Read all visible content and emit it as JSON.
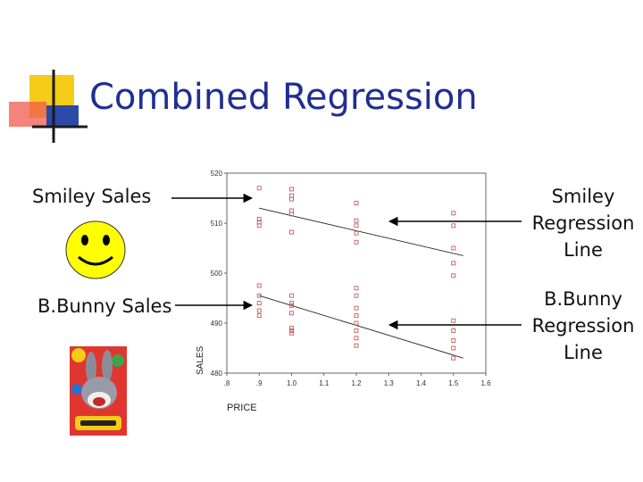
{
  "slide": {
    "title": "Combined Regression",
    "labels": {
      "smiley_sales": "Smiley Sales",
      "bunny_sales": "B.Bunny Sales",
      "smiley_line": [
        "Smiley",
        "Regression",
        "Line"
      ],
      "bunny_line": [
        "B.Bunny",
        "Regression",
        "Line"
      ]
    },
    "logo_colors": {
      "yellow": "#f5cc17",
      "red": "#f05a4f",
      "blue": "#2b4aa8",
      "dark": "#1a1a1a"
    },
    "title_color": "#1f2e93",
    "pictures": [
      "smiley-face",
      "bugs-bunny-box"
    ],
    "arrow_color": "#000000"
  },
  "chart_data": {
    "type": "scatter",
    "xlabel": "PRICE",
    "ylabel": "SALES",
    "xlim": [
      0.8,
      1.6
    ],
    "ylim": [
      480,
      520
    ],
    "xticks": [
      ".8",
      ".9",
      "1.0",
      "1.1",
      "1.2",
      "1.3",
      "1.4",
      "1.5",
      "1.6"
    ],
    "xtick_values": [
      0.8,
      0.9,
      1.0,
      1.1,
      1.2,
      1.3,
      1.4,
      1.5,
      1.6
    ],
    "yticks": [
      "480",
      "490",
      "500",
      "510",
      "520"
    ],
    "ytick_values": [
      480,
      490,
      500,
      510,
      520
    ],
    "marker_color": "#c85a5a",
    "series": [
      {
        "points": [
          [
            0.9,
            517
          ],
          [
            0.9,
            510.8
          ],
          [
            0.9,
            510.2
          ],
          [
            0.9,
            509.5
          ],
          [
            1.0,
            516.8
          ],
          [
            1.0,
            515.5
          ],
          [
            1.0,
            514.8
          ],
          [
            1.0,
            512.5
          ],
          [
            1.0,
            511.8
          ],
          [
            1.0,
            508.2
          ],
          [
            1.2,
            514
          ],
          [
            1.2,
            510.5
          ],
          [
            1.2,
            509.5
          ],
          [
            1.2,
            508
          ],
          [
            1.2,
            506.2
          ],
          [
            1.5,
            512
          ],
          [
            1.5,
            509.5
          ],
          [
            1.5,
            505
          ],
          [
            1.5,
            502
          ],
          [
            1.5,
            499.5
          ]
        ],
        "line": [
          [
            0.9,
            513
          ],
          [
            1.53,
            503.5
          ]
        ]
      },
      {
        "points": [
          [
            0.9,
            497.5
          ],
          [
            0.9,
            495.5
          ],
          [
            0.9,
            494
          ],
          [
            0.9,
            492.5
          ],
          [
            0.9,
            491.5
          ],
          [
            1.0,
            495.5
          ],
          [
            1.0,
            494
          ],
          [
            1.0,
            493.5
          ],
          [
            1.0,
            492
          ],
          [
            1.0,
            489
          ],
          [
            1.0,
            488.5
          ],
          [
            1.0,
            488
          ],
          [
            1.2,
            497
          ],
          [
            1.2,
            495.5
          ],
          [
            1.2,
            493
          ],
          [
            1.2,
            491.5
          ],
          [
            1.2,
            490
          ],
          [
            1.2,
            488.5
          ],
          [
            1.2,
            487
          ],
          [
            1.2,
            485.5
          ],
          [
            1.5,
            490.5
          ],
          [
            1.5,
            488.5
          ],
          [
            1.5,
            486.5
          ],
          [
            1.5,
            485
          ],
          [
            1.5,
            483
          ]
        ],
        "line": [
          [
            0.9,
            495.5
          ],
          [
            1.53,
            483
          ]
        ]
      }
    ]
  }
}
